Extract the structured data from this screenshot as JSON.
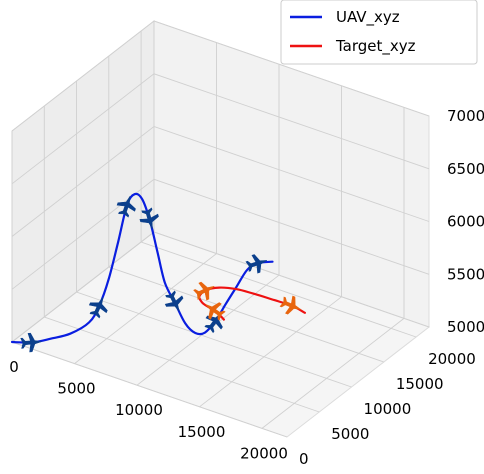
{
  "chart_data": {
    "type": "line3d",
    "title": "",
    "legend": {
      "placement": "top-right",
      "entries": [
        {
          "label": "UAV_xyz",
          "color": "#0a1ee0"
        },
        {
          "label": "Target_xyz",
          "color": "#ee1111"
        }
      ]
    },
    "axes": {
      "x": {
        "ticks": [
          "0",
          "5000",
          "10000",
          "15000",
          "20000"
        ],
        "range": [
          0,
          22000
        ]
      },
      "y": {
        "ticks": [
          "0",
          "5000",
          "10000",
          "15000",
          "20000"
        ],
        "range": [
          0,
          22000
        ]
      },
      "z": {
        "ticks": [
          "5000",
          "5500",
          "6000",
          "6500",
          "7000"
        ],
        "range": [
          5000,
          7000
        ]
      }
    },
    "grid": true,
    "series": [
      {
        "name": "UAV_xyz",
        "color": "#0a1ee0",
        "marker_color": "#0b3f8c",
        "points": [
          [
            0,
            0,
            5000
          ],
          [
            1000,
            1200,
            4980
          ],
          [
            2000,
            2200,
            5010
          ],
          [
            3000,
            3200,
            5050
          ],
          [
            4000,
            4200,
            5150
          ],
          [
            4500,
            4800,
            5300
          ],
          [
            5000,
            5300,
            5550
          ],
          [
            5500,
            5800,
            5900
          ],
          [
            6000,
            6200,
            6250
          ],
          [
            6400,
            6600,
            6350
          ],
          [
            6800,
            7000,
            6300
          ],
          [
            7200,
            7400,
            6100
          ],
          [
            7600,
            7800,
            5800
          ],
          [
            8000,
            8200,
            5500
          ],
          [
            8500,
            8800,
            5300
          ],
          [
            9000,
            9400,
            5100
          ],
          [
            9500,
            10000,
            5000
          ],
          [
            10000,
            10500,
            5000
          ],
          [
            10500,
            11200,
            5100
          ],
          [
            11000,
            11800,
            5250
          ],
          [
            11500,
            12500,
            5400
          ],
          [
            12000,
            13200,
            5550
          ],
          [
            12500,
            13900,
            5600
          ],
          [
            13200,
            14800,
            5600
          ]
        ],
        "marker_indices": [
          1,
          5,
          8,
          11,
          14,
          18,
          22
        ]
      },
      {
        "name": "Target_xyz",
        "color": "#ee1111",
        "marker_color": "#e8650e",
        "points": [
          [
            10500,
            12500,
            5050
          ],
          [
            9900,
            12950,
            5050
          ],
          [
            9200,
            13350,
            5050
          ],
          [
            8600,
            13550,
            5050
          ],
          [
            8100,
            13800,
            5050
          ],
          [
            7500,
            14500,
            5050
          ],
          [
            7400,
            15700,
            5050
          ],
          [
            7950,
            16700,
            5050
          ],
          [
            9000,
            17300,
            5050
          ],
          [
            10300,
            17500,
            5050
          ],
          [
            11900,
            17600,
            5050
          ],
          [
            13300,
            17650,
            5050
          ],
          [
            14500,
            17300,
            5050
          ]
        ],
        "marker_indices": [
          2,
          6,
          11
        ]
      }
    ]
  }
}
